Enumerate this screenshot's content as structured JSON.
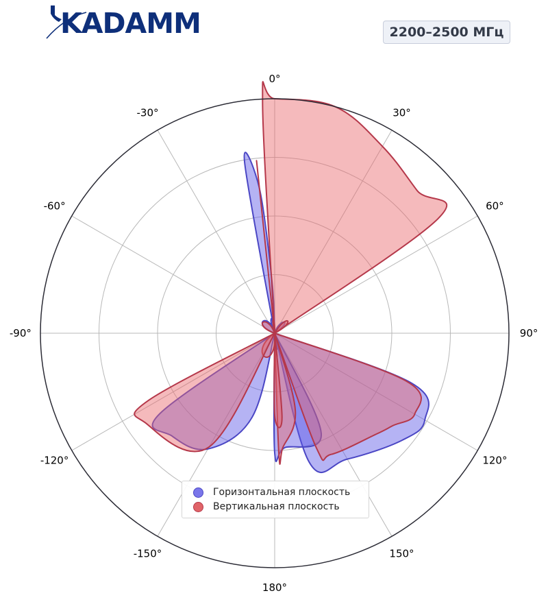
{
  "header": {
    "logo_text": "KADAMM",
    "frequency_badge": "2200–2500 МГц"
  },
  "chart_data": {
    "type": "polar",
    "title": "",
    "theta_ticks": [
      "0°",
      "30°",
      "60°",
      "90°",
      "120°",
      "150°",
      "180°",
      "-150°",
      "-120°",
      "-90°",
      "-60°",
      "-30°"
    ],
    "theta_tick_angles": [
      0,
      30,
      60,
      90,
      120,
      150,
      180,
      -150,
      -120,
      -90,
      -60,
      -30
    ],
    "radial_gridlines": [
      0.25,
      0.5,
      0.75,
      1.0
    ],
    "radial_tick_labels": false,
    "grid": true,
    "legend_position": "lower-center",
    "series": [
      {
        "name": "Горизонтальная плоскость",
        "color": "#5b57e6",
        "edge_color": "#4a46c4",
        "lobes": [
          {
            "theta_deg": [
              -12,
              -10,
              -6,
              -3,
              0
            ],
            "r": [
              0,
              0.74,
              0.62,
              0.22,
              0
            ]
          },
          {
            "theta_deg": [
              90,
              110,
              120,
              130,
              150,
              165,
              170
            ],
            "r": [
              0,
              0.62,
              0.74,
              0.71,
              0.62,
              0.57,
              0
            ]
          },
          {
            "theta_deg": [
              170,
              180,
              175,
              155,
              150
            ],
            "r": [
              0,
              0.51,
              0.49,
              0.47,
              0
            ]
          },
          {
            "theta_deg": [
              -175,
              -165,
              -150,
              -135,
              -125,
              -115
            ],
            "r": [
              0,
              0.37,
              0.57,
              0.62,
              0.6,
              0
            ]
          }
        ]
      },
      {
        "name": "Вертикальная плоскость",
        "color": "#e8666a",
        "edge_color": "#b5384a",
        "lobes": [
          {
            "theta_deg": [
              -5,
              -3,
              0,
              15,
              30,
              45,
              55,
              65
            ],
            "r": [
              0,
              0.99,
              1.0,
              1.0,
              0.92,
              0.86,
              0.85,
              0
            ]
          },
          {
            "theta_deg": [
              -9,
              -6,
              0
            ],
            "r": [
              0,
              0.74,
              0
            ]
          },
          {
            "theta_deg": [
              95,
              110,
              120,
              128,
              135,
              155,
              160,
              168
            ],
            "r": [
              0,
              0.6,
              0.69,
              0.64,
              0.61,
              0.57,
              0.52,
              0
            ]
          },
          {
            "theta_deg": [
              172,
              178,
              176,
              165,
              155
            ],
            "r": [
              0,
              0.52,
              0.49,
              0.34,
              0
            ]
          },
          {
            "theta_deg": [
              -175,
              -185,
              -180,
              -178
            ],
            "r": [
              0,
              0.36,
              0.35,
              0
            ]
          },
          {
            "theta_deg": [
              -145,
              -150,
              -125,
              -118,
              -115
            ],
            "r": [
              0,
              0.56,
              0.67,
              0.61,
              0
            ]
          }
        ]
      }
    ]
  }
}
